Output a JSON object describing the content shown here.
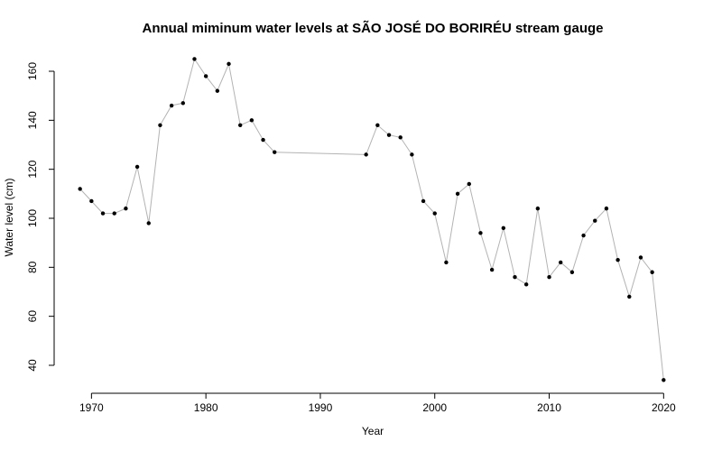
{
  "chart_data": {
    "type": "line",
    "title": "Annual miminum water levels at SÃO JOSÉ DO BORIRÉU stream gauge",
    "xlabel": "Year",
    "ylabel": "Water level (cm)",
    "xlim": [
      1968,
      2021
    ],
    "ylim": [
      33,
      167
    ],
    "x_ticks": [
      1970,
      1980,
      1990,
      2000,
      2010,
      2020
    ],
    "y_ticks": [
      40,
      60,
      80,
      100,
      120,
      140,
      160
    ],
    "grid": false,
    "colors": {
      "line": "#b3b3b3",
      "points": "#000000"
    },
    "series": [
      {
        "x": [
          1969,
          1970,
          1971,
          1972,
          1973,
          1974,
          1975,
          1976,
          1977,
          1978,
          1979,
          1980,
          1981,
          1982,
          1983,
          1984,
          1985,
          1986,
          1994,
          1995,
          1996,
          1997,
          1998,
          1999,
          2000,
          2001,
          2002,
          2003,
          2004,
          2005,
          2006,
          2007,
          2008,
          2009,
          2010,
          2011,
          2012,
          2013,
          2014,
          2015,
          2016,
          2017,
          2018,
          2019,
          2020
        ],
        "y": [
          112,
          107,
          102,
          102,
          104,
          121,
          98,
          138,
          146,
          147,
          165,
          158,
          152,
          163,
          138,
          140,
          132,
          127,
          126,
          138,
          134,
          133,
          126,
          107,
          102,
          82,
          110,
          114,
          94,
          79,
          96,
          76,
          73,
          104,
          76,
          82,
          78,
          93,
          99,
          104,
          83,
          68,
          84,
          78,
          34
        ]
      }
    ]
  }
}
